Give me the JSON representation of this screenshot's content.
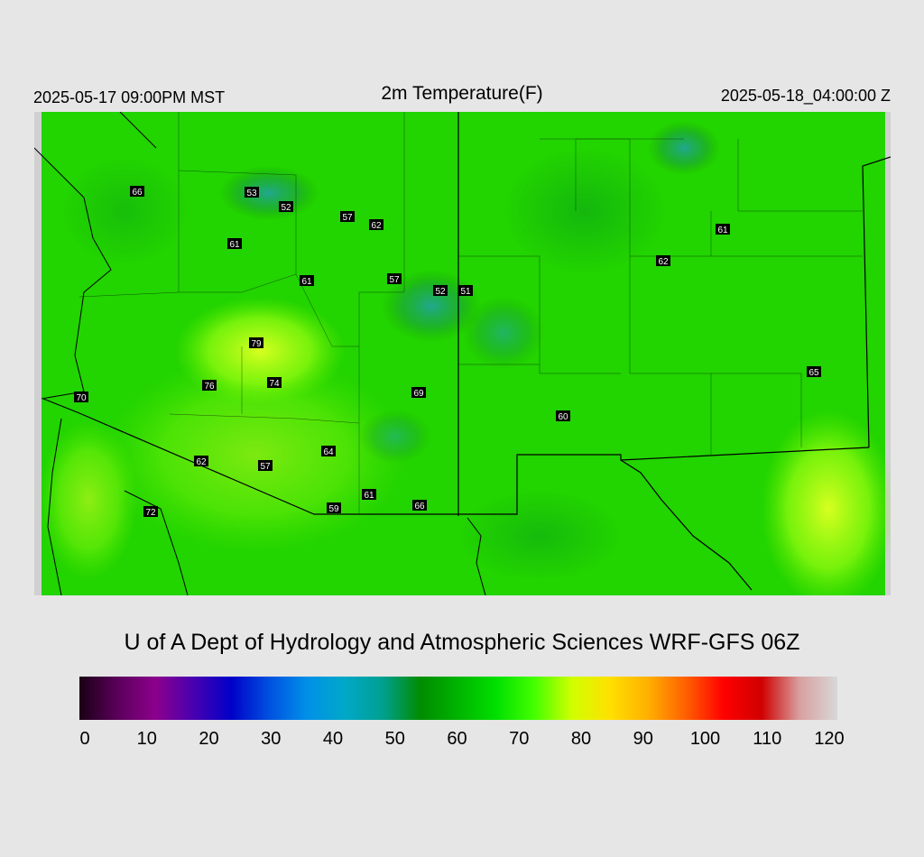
{
  "header": {
    "left_time": "2025-05-17 09:00PM MST",
    "title": "2m Temperature(F)",
    "right_time": "2025-05-18_04:00:00 Z"
  },
  "credit": "U of A Dept of Hydrology and Atmospheric Sciences WRF-GFS 06Z",
  "colorbar": {
    "ticks": [
      "0",
      "10",
      "20",
      "30",
      "40",
      "50",
      "60",
      "70",
      "80",
      "90",
      "100",
      "110",
      "120"
    ],
    "colors": [
      "#1a0014",
      "#5a005a",
      "#8c008c",
      "#4a00b0",
      "#0000c8",
      "#0050e0",
      "#0090e8",
      "#00a8c8",
      "#00a090",
      "#008c00",
      "#00b400",
      "#00e000",
      "#44ff00",
      "#d0ff00",
      "#ffe000",
      "#ffb000",
      "#ff6000",
      "#ff0000",
      "#d00000",
      "#d8a0a0",
      "#d8d8d8"
    ]
  },
  "map": {
    "station_labels": [
      {
        "value": "66"
      },
      {
        "value": "53"
      },
      {
        "value": "52"
      },
      {
        "value": "57"
      },
      {
        "value": "62"
      },
      {
        "value": "61"
      },
      {
        "value": "61"
      },
      {
        "value": "57"
      },
      {
        "value": "52"
      },
      {
        "value": "51"
      },
      {
        "value": "79"
      },
      {
        "value": "76"
      },
      {
        "value": "74"
      },
      {
        "value": "69"
      },
      {
        "value": "70"
      },
      {
        "value": "62"
      },
      {
        "value": "57"
      },
      {
        "value": "64"
      },
      {
        "value": "61"
      },
      {
        "value": "59"
      },
      {
        "value": "66"
      },
      {
        "value": "72"
      },
      {
        "value": "60"
      },
      {
        "value": "61"
      },
      {
        "value": "62"
      },
      {
        "value": "65"
      }
    ]
  }
}
